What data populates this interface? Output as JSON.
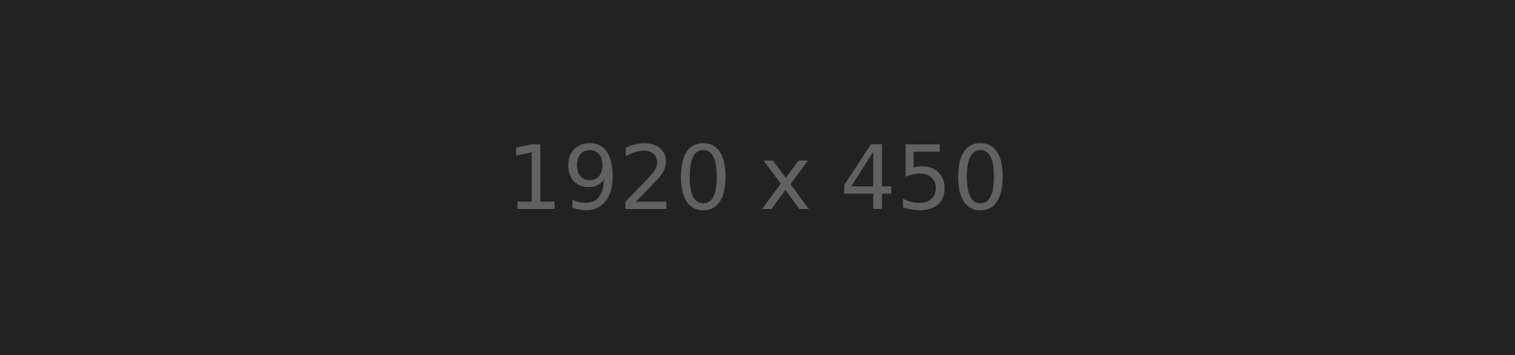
{
  "placeholder": {
    "text": "1920 x 450"
  },
  "colors": {
    "background": "#222222",
    "text": "#616161"
  }
}
